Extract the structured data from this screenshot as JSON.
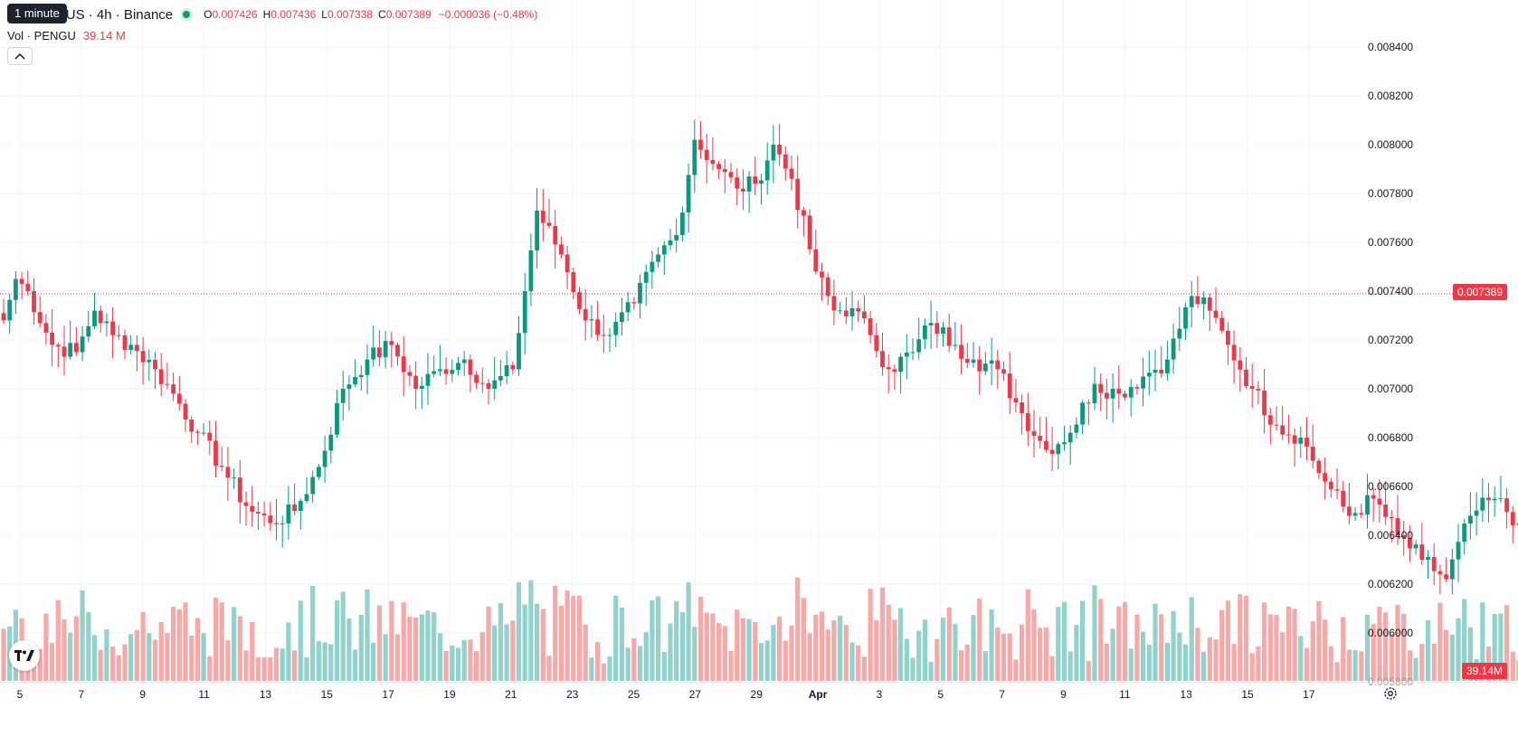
{
  "window": {
    "tooltip": "1 minute",
    "symbol_title": "U / TetherUS · 4h · Binance"
  },
  "legend": {
    "open_key": "O",
    "open": "0.007426",
    "high_key": "H",
    "high": "0.007436",
    "low_key": "L",
    "low": "0.007338",
    "close_key": "C",
    "close": "0.007389",
    "change": "−0.000036 (−0.48%)",
    "volume_label": "Vol · PENGU",
    "volume_value": "39.14 M"
  },
  "price_scale": {
    "current_price_label": "0.007389",
    "volume_label": "39.14M",
    "bottom_cut_label": "0.005800"
  },
  "colors": {
    "up": "#089981",
    "down": "#f23645",
    "up_volume": "#92d2cc",
    "down_volume": "#f7a9a7",
    "grid": "#f0f3fa",
    "text": "#131722",
    "price_line": "#f23645"
  },
  "icons": {
    "collapse": "chevron-up-icon",
    "logo": "tradingview-logo",
    "settings": "gear-icon"
  },
  "chart_data": {
    "type": "candlestick",
    "ylim": [
      0.00585,
      0.00845
    ],
    "y_ticks": [
      "0.008400",
      "0.008200",
      "0.008000",
      "0.007800",
      "0.007600",
      "0.007400",
      "0.007200",
      "0.007000",
      "0.006800",
      "0.006600",
      "0.006400",
      "0.006200",
      "0.006000"
    ],
    "x_ticks": [
      "5",
      "7",
      "9",
      "11",
      "13",
      "15",
      "17",
      "19",
      "21",
      "23",
      "25",
      "27",
      "29",
      "Apr",
      "3",
      "5",
      "7",
      "9",
      "11",
      "13",
      "15",
      "17"
    ],
    "current_price": 0.007389,
    "close_anchors": [
      [
        0,
        0.00728
      ],
      [
        2,
        0.00745
      ],
      [
        4,
        0.0074
      ],
      [
        8,
        0.00718
      ],
      [
        12,
        0.00715
      ],
      [
        15,
        0.00732
      ],
      [
        18,
        0.00722
      ],
      [
        21,
        0.00718
      ],
      [
        25,
        0.00708
      ],
      [
        28,
        0.00698
      ],
      [
        32,
        0.00682
      ],
      [
        36,
        0.00668
      ],
      [
        40,
        0.00652
      ],
      [
        44,
        0.00645
      ],
      [
        48,
        0.0065
      ],
      [
        52,
        0.00668
      ],
      [
        56,
        0.007
      ],
      [
        60,
        0.00712
      ],
      [
        64,
        0.00718
      ],
      [
        68,
        0.007
      ],
      [
        72,
        0.00708
      ],
      [
        76,
        0.00712
      ],
      [
        80,
        0.007
      ],
      [
        84,
        0.00708
      ],
      [
        88,
        0.00773
      ],
      [
        92,
        0.00755
      ],
      [
        96,
        0.00728
      ],
      [
        100,
        0.00722
      ],
      [
        104,
        0.00735
      ],
      [
        108,
        0.00755
      ],
      [
        111,
        0.00763
      ],
      [
        114,
        0.00802
      ],
      [
        118,
        0.0079
      ],
      [
        121,
        0.00782
      ],
      [
        124,
        0.00784
      ],
      [
        127,
        0.008
      ],
      [
        130,
        0.00786
      ],
      [
        134,
        0.00748
      ],
      [
        137,
        0.00732
      ],
      [
        140,
        0.00733
      ],
      [
        143,
        0.00722
      ],
      [
        146,
        0.00708
      ],
      [
        150,
        0.00715
      ],
      [
        153,
        0.00727
      ],
      [
        157,
        0.00718
      ],
      [
        160,
        0.00712
      ],
      [
        164,
        0.00708
      ],
      [
        168,
        0.0069
      ],
      [
        172,
        0.00675
      ],
      [
        176,
        0.00682
      ],
      [
        180,
        0.00702
      ],
      [
        184,
        0.00698
      ],
      [
        188,
        0.00705
      ],
      [
        192,
        0.00712
      ],
      [
        196,
        0.00738
      ],
      [
        199,
        0.00732
      ],
      [
        202,
        0.00718
      ],
      [
        206,
        0.007
      ],
      [
        210,
        0.00685
      ],
      [
        214,
        0.0068
      ],
      [
        218,
        0.00662
      ],
      [
        222,
        0.00648
      ],
      [
        226,
        0.00655
      ],
      [
        230,
        0.0064
      ],
      [
        234,
        0.0063
      ],
      [
        238,
        0.00622
      ],
      [
        242,
        0.00648
      ],
      [
        246,
        0.00655
      ],
      [
        250,
        0.00645
      ],
      [
        254,
        0.0064
      ],
      [
        258,
        0.00652
      ],
      [
        262,
        0.00658
      ],
      [
        266,
        0.0065
      ],
      [
        270,
        0.0062
      ],
      [
        274,
        0.00618
      ],
      [
        278,
        0.00622
      ],
      [
        282,
        0.00635
      ],
      [
        286,
        0.00625
      ],
      [
        290,
        0.00622
      ],
      [
        294,
        0.0062
      ],
      [
        298,
        0.00608
      ],
      [
        302,
        0.0061
      ],
      [
        306,
        0.00645
      ],
      [
        310,
        0.00655
      ],
      [
        314,
        0.0064
      ],
      [
        318,
        0.00622
      ],
      [
        322,
        0.00628
      ],
      [
        326,
        0.00682
      ],
      [
        330,
        0.0067
      ],
      [
        334,
        0.00655
      ],
      [
        338,
        0.0063
      ],
      [
        342,
        0.00635
      ],
      [
        346,
        0.0066
      ],
      [
        350,
        0.00652
      ],
      [
        354,
        0.0068
      ],
      [
        358,
        0.0069
      ],
      [
        362,
        0.00665
      ],
      [
        366,
        0.00675
      ],
      [
        370,
        0.00725
      ],
      [
        374,
        0.00655
      ],
      [
        378,
        0.00648
      ],
      [
        382,
        0.0064
      ],
      [
        386,
        0.0064
      ],
      [
        390,
        0.00685
      ],
      [
        394,
        0.007
      ],
      [
        398,
        0.00705
      ],
      [
        402,
        0.00685
      ],
      [
        406,
        0.0069
      ],
      [
        410,
        0.00695
      ],
      [
        414,
        0.00722
      ],
      [
        418,
        0.00745
      ],
      [
        421,
        0.00739
      ]
    ]
  }
}
